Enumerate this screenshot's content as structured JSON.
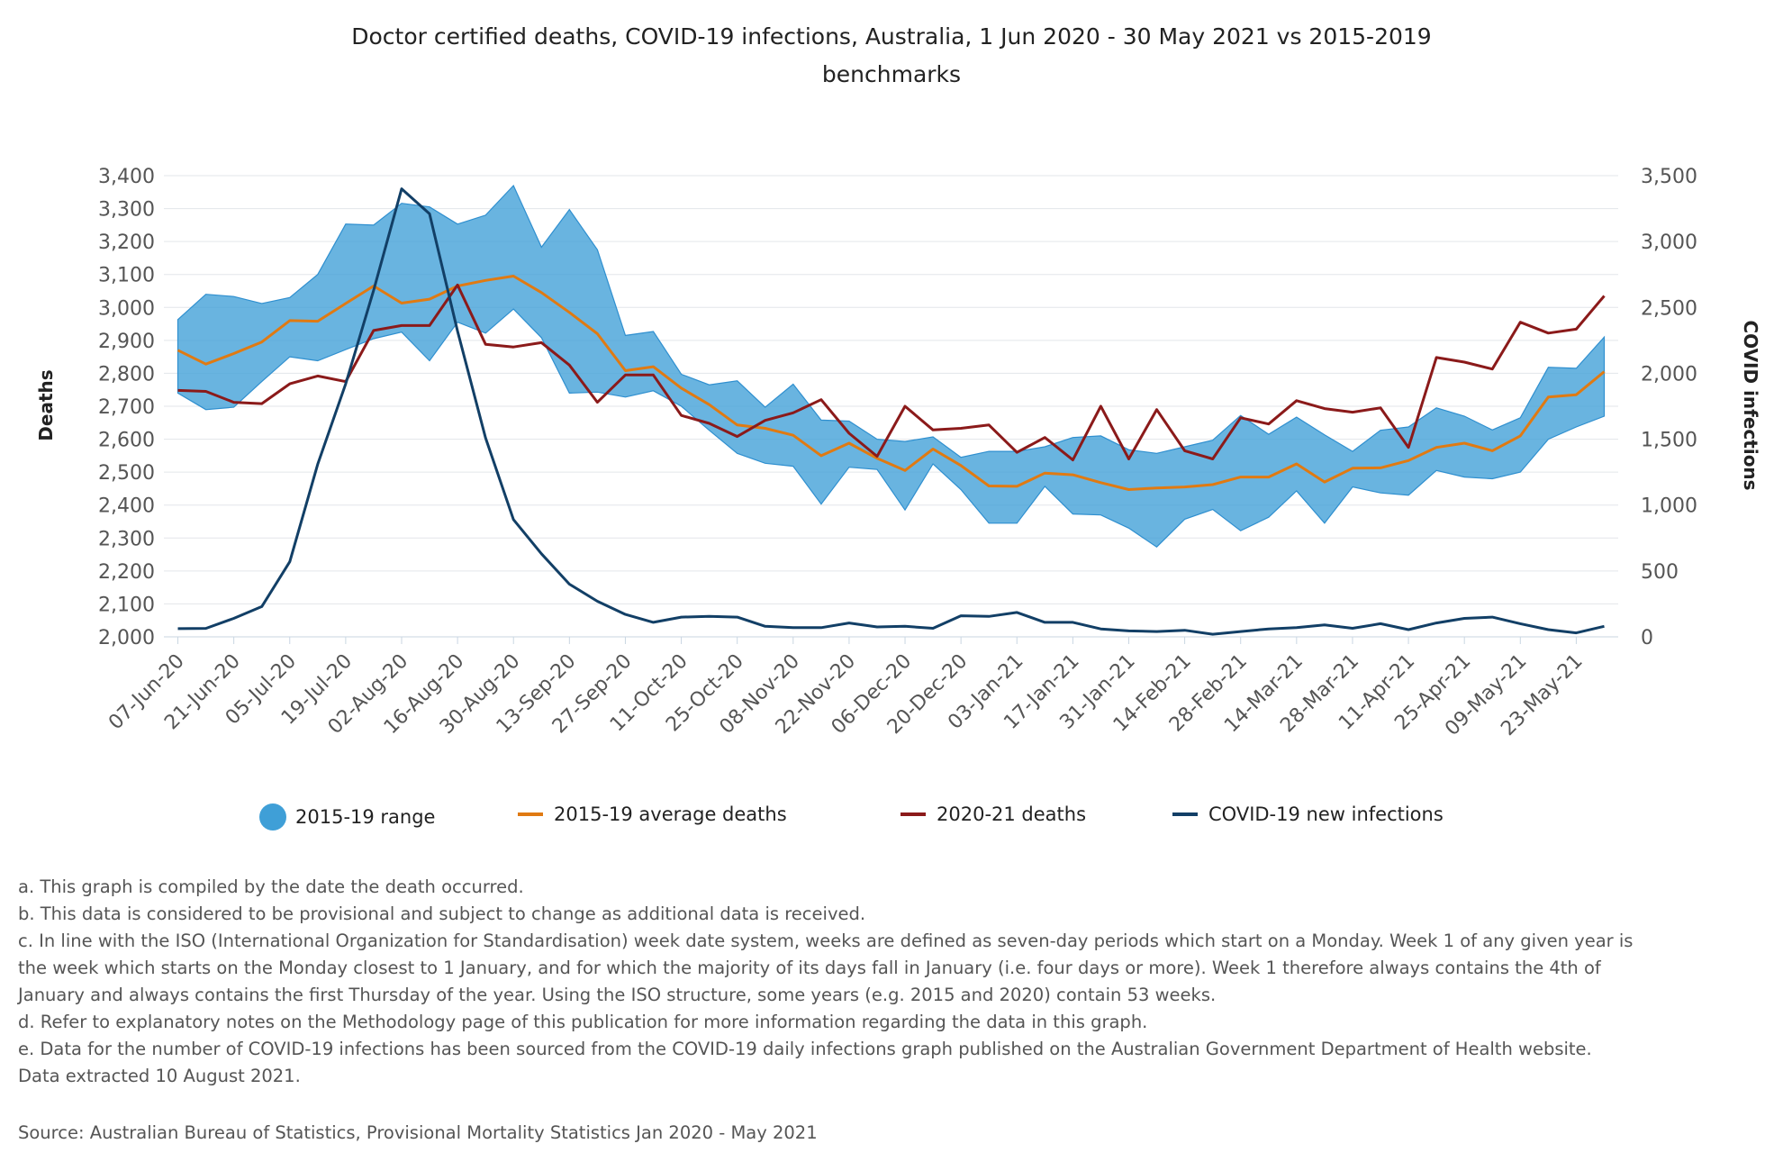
{
  "chart_data": {
    "type": "line",
    "title_line1": "Doctor certified deaths, COVID-19 infections, Australia, 1 Jun 2020 - 30 May 2021 vs 2015-2019",
    "title_line2": "benchmarks",
    "ylabel_left": "Deaths",
    "ylabel_right": "COVID infections",
    "ylim_left": [
      2000,
      3400
    ],
    "ylim_right": [
      0,
      3500
    ],
    "yticks_left": [
      "3,400",
      "3,300",
      "3,200",
      "3,100",
      "3,000",
      "2,900",
      "2,800",
      "2,700",
      "2,600",
      "2,500",
      "2,400",
      "2,300",
      "2,200",
      "2,100",
      "2,000"
    ],
    "yticks_right": [
      "3,500",
      "3,000",
      "2,500",
      "2,000",
      "1,500",
      "1,000",
      "500",
      "0"
    ],
    "grid": true,
    "legend_position": "bottom",
    "x_tick_labels": [
      "07-Jun-20",
      "21-Jun-20",
      "05-Jul-20",
      "19-Jul-20",
      "02-Aug-20",
      "16-Aug-20",
      "30-Aug-20",
      "13-Sep-20",
      "27-Sep-20",
      "11-Oct-20",
      "25-Oct-20",
      "08-Nov-20",
      "22-Nov-20",
      "06-Dec-20",
      "20-Dec-20",
      "03-Jan-21",
      "17-Jan-21",
      "31-Jan-21",
      "14-Feb-21",
      "28-Feb-21",
      "14-Mar-21",
      "28-Mar-21",
      "11-Apr-21",
      "25-Apr-21",
      "09-May-21",
      "23-May-21"
    ],
    "x_weeks": [
      "07-Jun-20",
      "14-Jun-20",
      "21-Jun-20",
      "28-Jun-20",
      "05-Jul-20",
      "12-Jul-20",
      "19-Jul-20",
      "26-Jul-20",
      "02-Aug-20",
      "09-Aug-20",
      "16-Aug-20",
      "23-Aug-20",
      "30-Aug-20",
      "06-Sep-20",
      "13-Sep-20",
      "20-Sep-20",
      "27-Sep-20",
      "04-Oct-20",
      "11-Oct-20",
      "18-Oct-20",
      "25-Oct-20",
      "01-Nov-20",
      "08-Nov-20",
      "15-Nov-20",
      "22-Nov-20",
      "29-Nov-20",
      "06-Dec-20",
      "13-Dec-20",
      "20-Dec-20",
      "27-Dec-20",
      "03-Jan-21",
      "10-Jan-21",
      "17-Jan-21",
      "24-Jan-21",
      "31-Jan-21",
      "07-Feb-21",
      "14-Feb-21",
      "21-Feb-21",
      "28-Feb-21",
      "07-Mar-21",
      "14-Mar-21",
      "21-Mar-21",
      "28-Mar-21",
      "04-Apr-21",
      "11-Apr-21",
      "18-Apr-21",
      "25-Apr-21",
      "02-May-21",
      "09-May-21",
      "16-May-21",
      "23-May-21",
      "30-May-21"
    ],
    "series": [
      {
        "name": "2015-19 range",
        "type": "area",
        "color": "#3f9fd7",
        "upper": [
          2963,
          3040,
          3033,
          3012,
          3030,
          3100,
          3253,
          3250,
          3316,
          3305,
          3253,
          3280,
          3370,
          3183,
          3297,
          3175,
          2915,
          2927,
          2797,
          2765,
          2777,
          2697,
          2767,
          2658,
          2655,
          2600,
          2593,
          2607,
          2545,
          2563,
          2563,
          2577,
          2605,
          2610,
          2568,
          2557,
          2577,
          2597,
          2672,
          2615,
          2667,
          2613,
          2563,
          2627,
          2637,
          2695,
          2670,
          2628,
          2665,
          2818,
          2815,
          2910
        ],
        "lower": [
          2740,
          2690,
          2697,
          2775,
          2850,
          2838,
          2872,
          2905,
          2925,
          2838,
          2955,
          2922,
          2995,
          2908,
          2740,
          2743,
          2728,
          2747,
          2700,
          2627,
          2557,
          2527,
          2518,
          2403,
          2515,
          2508,
          2385,
          2525,
          2447,
          2345,
          2345,
          2457,
          2373,
          2370,
          2330,
          2273,
          2357,
          2387,
          2322,
          2363,
          2443,
          2345,
          2455,
          2437,
          2430,
          2505,
          2485,
          2480,
          2500,
          2600,
          2637,
          2670
        ]
      },
      {
        "name": "2015-19 average deaths",
        "color": "#e07a12",
        "values": [
          2870,
          2828,
          2860,
          2895,
          2960,
          2958,
          3012,
          3065,
          3013,
          3025,
          3065,
          3082,
          3095,
          3045,
          2985,
          2920,
          2808,
          2820,
          2755,
          2705,
          2643,
          2633,
          2612,
          2550,
          2588,
          2542,
          2505,
          2570,
          2520,
          2458,
          2457,
          2497,
          2492,
          2468,
          2447,
          2452,
          2455,
          2462,
          2485,
          2485,
          2525,
          2470,
          2512,
          2513,
          2535,
          2575,
          2588,
          2565,
          2610,
          2728,
          2735,
          2805
        ]
      },
      {
        "name": "2020-21 deaths",
        "color": "#8b1a1a",
        "values": [
          2748,
          2745,
          2712,
          2708,
          2768,
          2792,
          2775,
          2930,
          2945,
          2945,
          3068,
          2888,
          2880,
          2893,
          2825,
          2712,
          2795,
          2795,
          2672,
          2648,
          2608,
          2657,
          2680,
          2720,
          2618,
          2548,
          2700,
          2628,
          2633,
          2643,
          2560,
          2605,
          2537,
          2700,
          2540,
          2690,
          2565,
          2540,
          2665,
          2646,
          2717,
          2693,
          2682,
          2695,
          2575,
          2848,
          2834,
          2813,
          2955,
          2922,
          2934,
          3035
        ]
      },
      {
        "name": "COVID-19 new infections",
        "color": "#123f66",
        "values": [
          62,
          64,
          140,
          230,
          570,
          1310,
          1920,
          2630,
          3400,
          3210,
          2320,
          1510,
          890,
          630,
          400,
          270,
          170,
          110,
          150,
          155,
          150,
          80,
          70,
          70,
          105,
          75,
          80,
          65,
          160,
          155,
          185,
          110,
          110,
          60,
          45,
          40,
          50,
          20,
          40,
          60,
          70,
          90,
          65,
          100,
          55,
          105,
          140,
          150,
          100,
          55,
          30,
          80
        ]
      }
    ]
  },
  "legend": {
    "range_label": "2015-19 range",
    "avg_label": "2015-19 average deaths",
    "deaths_label": "2020-21 deaths",
    "covid_label": "COVID-19 new infections"
  },
  "notes": {
    "a": "a. This graph is compiled by the date the death occurred.",
    "b": "b. This data is considered to be provisional and subject to change as additional data is received.",
    "c1": "c. In line with the ISO (International Organization for Standardisation) week date system, weeks are defined as seven-day periods which start on a Monday. Week 1 of any given year is",
    "c2": "the week which starts on the Monday closest to 1 January, and for which the majority of its days fall in January (i.e. four days or more). Week 1 therefore always contains the 4th of",
    "c3": "January and always contains the first Thursday of the year. Using the ISO structure, some years (e.g. 2015 and 2020) contain 53 weeks.",
    "d": "d. Refer to explanatory notes on the Methodology page of this publication for more information regarding the data in this graph.",
    "e1": "e. Data for the number of COVID-19 infections has been sourced from the COVID-19 daily infections graph published on the Australian Government Department of Health website.",
    "e2": "Data extracted 10 August 2021."
  },
  "source": "Source: Australian Bureau of Statistics, Provisional Mortality Statistics Jan 2020 - May 2021"
}
